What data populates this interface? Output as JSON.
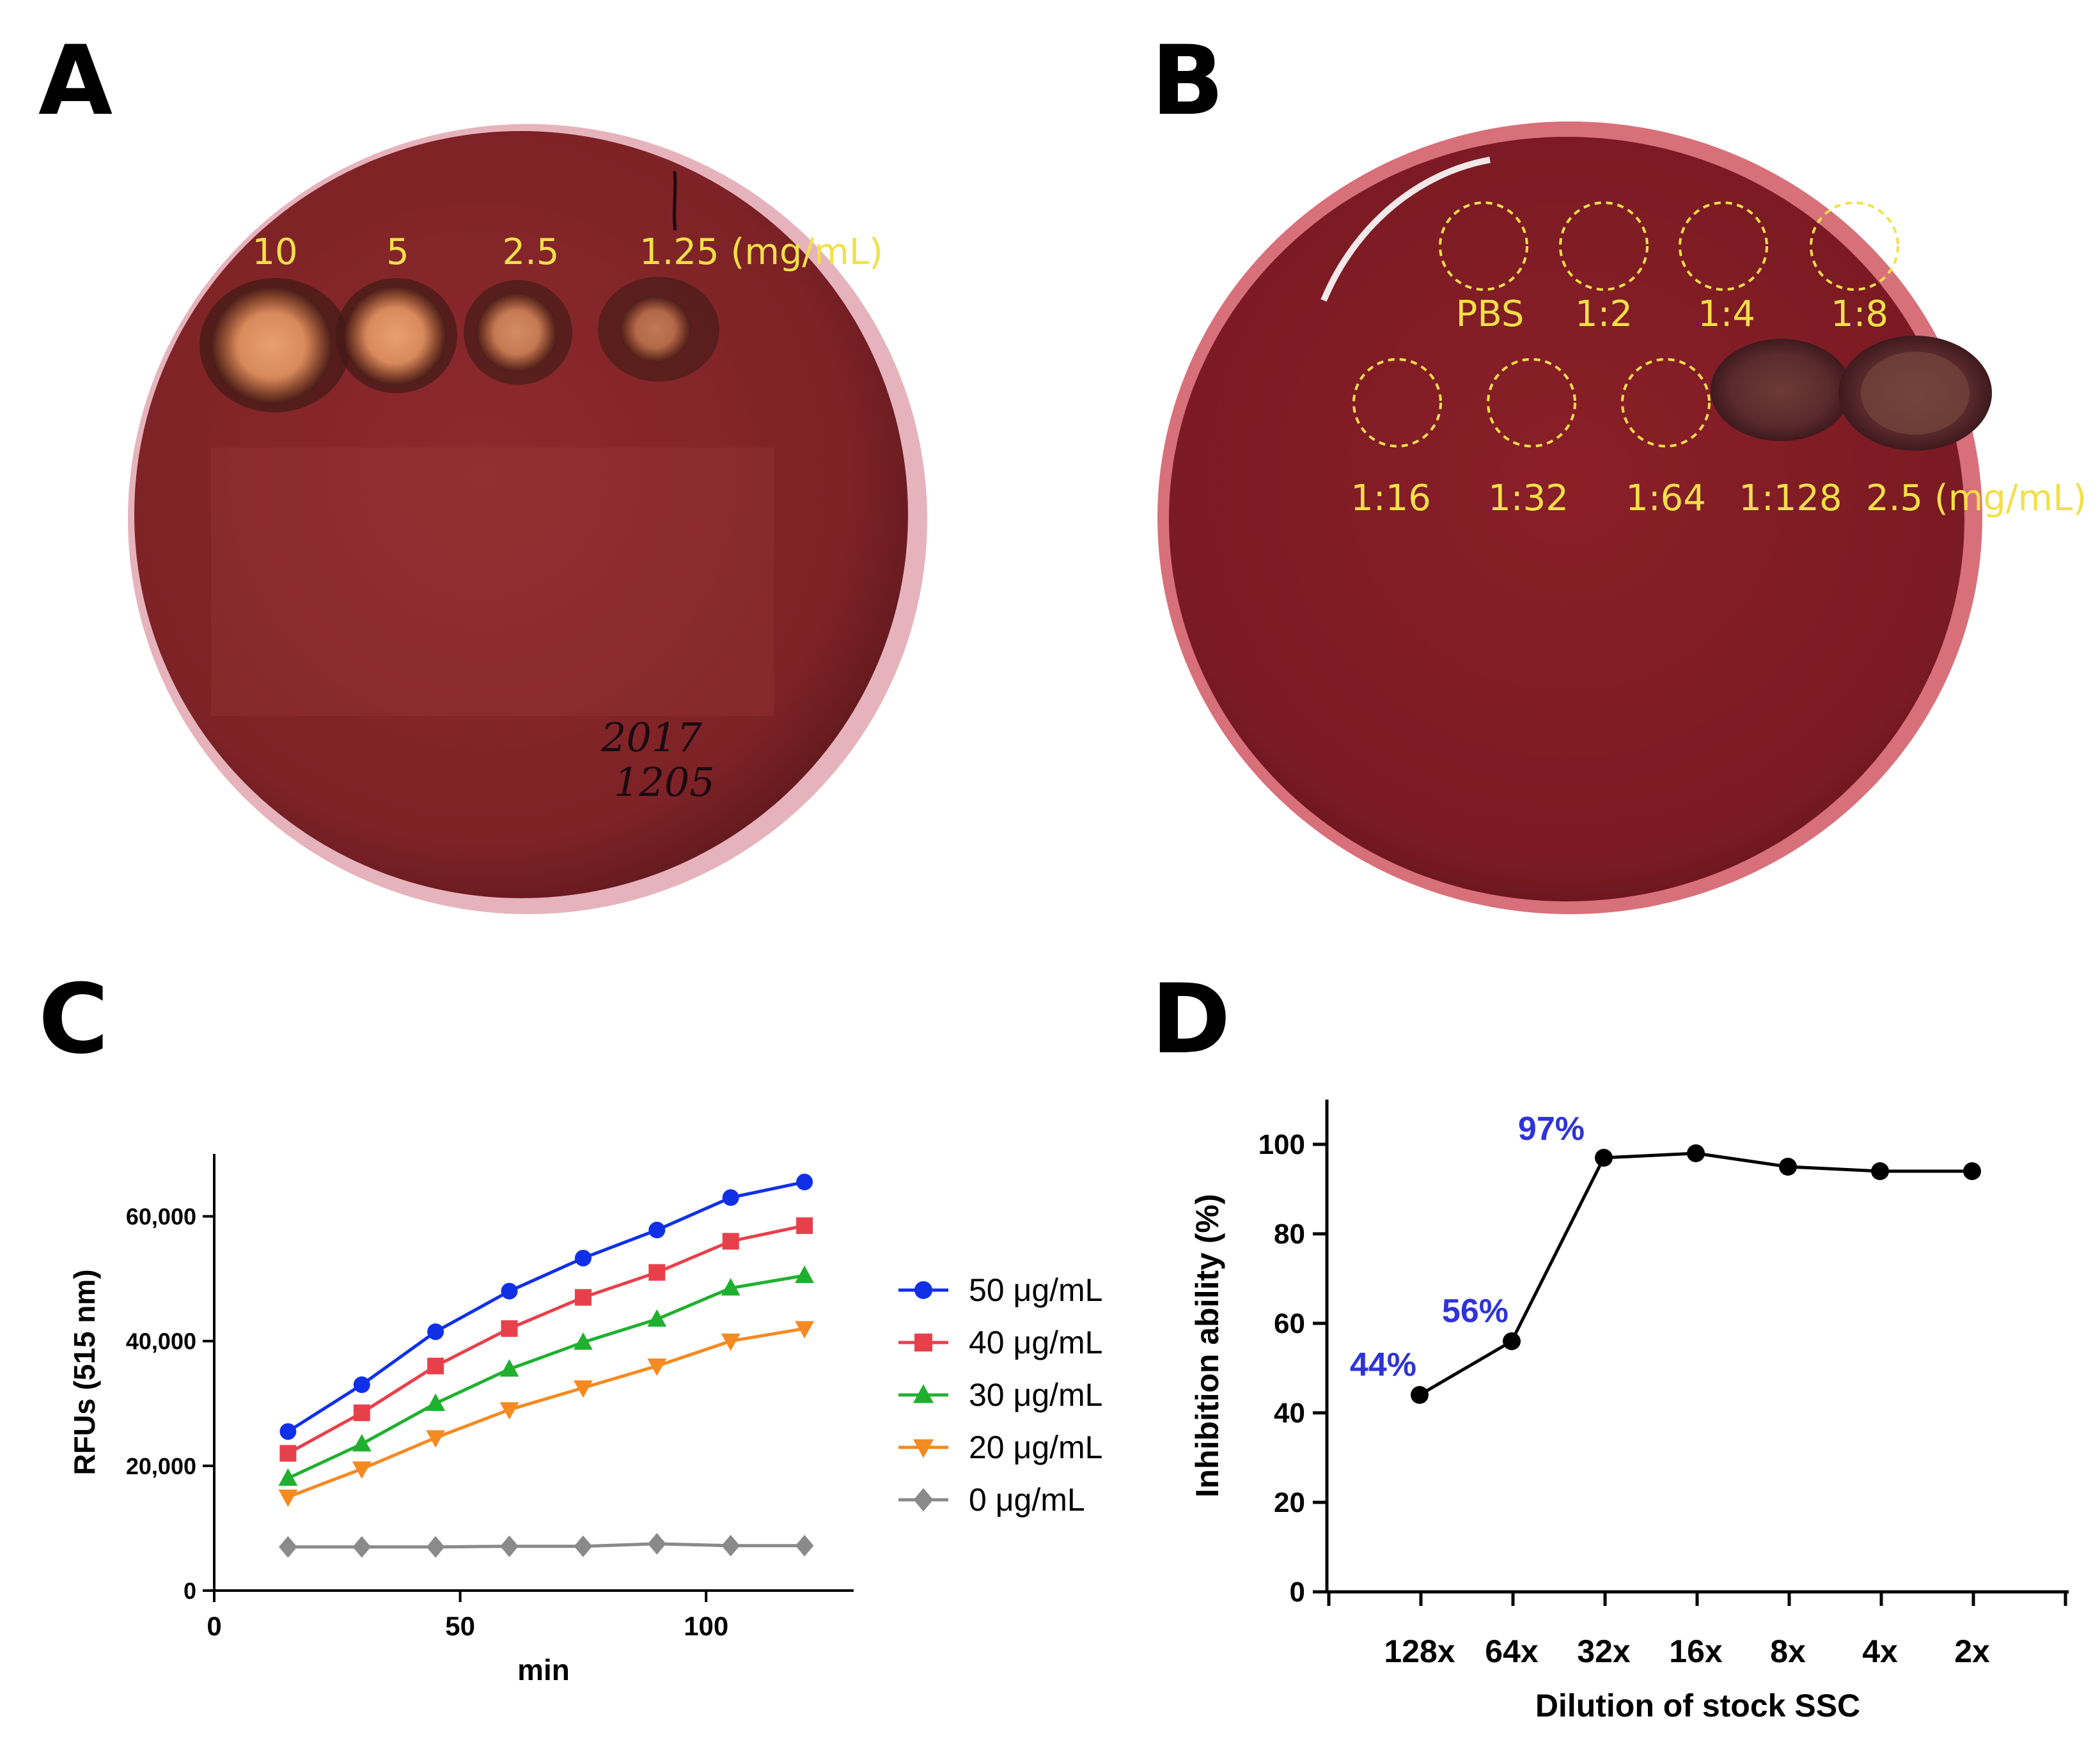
{
  "panels": {
    "a": "A",
    "b": "B",
    "c": "C",
    "d": "D"
  },
  "plate_a": {
    "labels": [
      "10",
      "5",
      "2.5",
      "1.25 (mg/mL)"
    ],
    "handwriting": [
      "2017",
      "1205"
    ]
  },
  "plate_b": {
    "row1_labels": [
      "PBS",
      "1:2",
      "1:4",
      "1:8"
    ],
    "row2_labels": [
      "1:16",
      "1:32",
      "1:64",
      "1:128",
      "2.5 (mg/mL)"
    ]
  },
  "colors": {
    "agar": "#8c2a2c",
    "agar_dark": "#6a1c20",
    "rim": "#c96a78",
    "label": "#f2e04a",
    "blue": "#1030e8",
    "red": "#e8404a",
    "green": "#20b030",
    "orange": "#f58a20",
    "gray": "#8a8a8a",
    "pct": "#2f34d8",
    "black": "#000000"
  },
  "chart_data": [
    {
      "type": "line",
      "xlabel": "min",
      "ylabel": "RFUs (515 nm)",
      "xlim": [
        0,
        130
      ],
      "ylim": [
        0,
        70000
      ],
      "xticks": [
        0,
        50,
        100
      ],
      "xtick_labels": [
        "0",
        "50",
        "100"
      ],
      "yticks": [
        0,
        20000,
        40000,
        60000
      ],
      "ytick_labels": [
        "0",
        "20,000",
        "40,000",
        "60,000"
      ],
      "x": [
        15,
        30,
        45,
        60,
        75,
        90,
        105,
        120
      ],
      "series": [
        {
          "name": "50 μg/mL",
          "marker": "circle",
          "color": "#1030e8",
          "values": [
            25500,
            33000,
            41500,
            48000,
            53300,
            57800,
            63000,
            65500
          ]
        },
        {
          "name": "40 μg/mL",
          "marker": "square",
          "color": "#e8404a",
          "values": [
            22000,
            28500,
            36000,
            42000,
            47000,
            51000,
            56000,
            58500
          ]
        },
        {
          "name": "30 μg/mL",
          "marker": "triangle-up",
          "color": "#20b030",
          "values": [
            18000,
            23500,
            30000,
            35500,
            39800,
            43500,
            48500,
            50500
          ]
        },
        {
          "name": "20 μg/mL",
          "marker": "triangle-down",
          "color": "#f58a20",
          "values": [
            15000,
            19500,
            24500,
            29000,
            32500,
            36000,
            40000,
            42000
          ]
        },
        {
          "name": "0 μg/mL",
          "marker": "diamond",
          "color": "#8a8a8a",
          "values": [
            7000,
            7000,
            7000,
            7100,
            7100,
            7500,
            7200,
            7200
          ]
        }
      ]
    },
    {
      "type": "line",
      "xlabel": "Dilution of stock SSC",
      "ylabel": "Inhibition ability (%)",
      "ylim": [
        0,
        110
      ],
      "yticks": [
        0,
        20,
        40,
        60,
        80,
        100
      ],
      "ytick_labels": [
        "0",
        "20",
        "40",
        "60",
        "80",
        "100"
      ],
      "categories": [
        "128x",
        "64x",
        "32x",
        "16x",
        "8x",
        "4x",
        "2x"
      ],
      "values": [
        44,
        56,
        97,
        98,
        95,
        94,
        94
      ],
      "annotations": [
        "44%",
        "56%",
        "97%"
      ]
    }
  ]
}
